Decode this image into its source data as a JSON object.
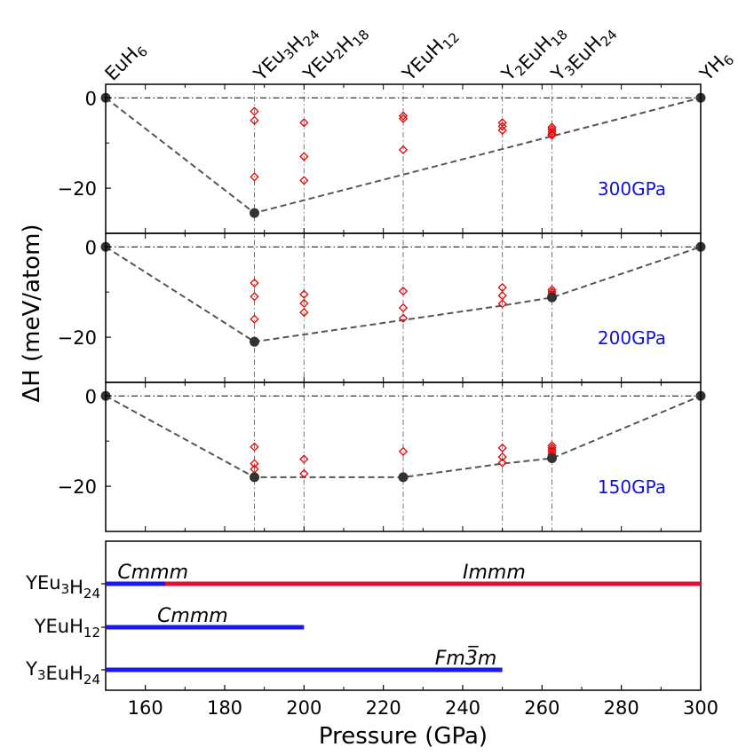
{
  "chart_data": [
    {
      "type": "scatter",
      "ylabel": "ΔH (meV/atom)",
      "xlim": [
        150,
        300
      ],
      "compositions": [
        {
          "formula": "EuH6",
          "x": 150
        },
        {
          "formula": "YEu3H24",
          "x": 187.5
        },
        {
          "formula": "YEu2H18",
          "x": 200
        },
        {
          "formula": "YEuH12",
          "x": 225
        },
        {
          "formula": "Y2EuH18",
          "x": 250
        },
        {
          "formula": "Y3EuH24",
          "x": 262.5
        },
        {
          "formula": "YH6",
          "x": 300
        }
      ],
      "panels": [
        {
          "pressure": "300GPa",
          "ylim": [
            -30,
            3
          ],
          "yticks": [
            "0",
            "−20"
          ],
          "ytick_values": [
            0,
            -20
          ],
          "hull": [
            [
              150,
              0
            ],
            [
              187.5,
              -25.5
            ],
            [
              300,
              0
            ]
          ],
          "stable_points": [
            [
              150,
              0
            ],
            [
              187.5,
              -25.5
            ],
            [
              300,
              0
            ]
          ],
          "metastable_points": [
            [
              187.5,
              -3
            ],
            [
              187.5,
              -5
            ],
            [
              187.5,
              -17.5
            ],
            [
              200,
              -5.5
            ],
            [
              200,
              -13
            ],
            [
              200,
              -18.3
            ],
            [
              225,
              -4
            ],
            [
              225,
              -4.6
            ],
            [
              225,
              -11.5
            ],
            [
              250,
              -5.5
            ],
            [
              250,
              -6.3
            ],
            [
              250,
              -7.2
            ],
            [
              262.5,
              -6.5
            ],
            [
              262.5,
              -7
            ],
            [
              262.5,
              -7.5
            ],
            [
              262.5,
              -8
            ],
            [
              262.5,
              -8.3
            ]
          ]
        },
        {
          "pressure": "200GPa",
          "ylim": [
            -30,
            3
          ],
          "yticks": [
            "0",
            "−20"
          ],
          "ytick_values": [
            0,
            -20
          ],
          "hull": [
            [
              150,
              0
            ],
            [
              187.5,
              -21
            ],
            [
              250,
              -13
            ],
            [
              262.5,
              -11.2
            ],
            [
              300,
              0
            ]
          ],
          "stable_points": [
            [
              150,
              0
            ],
            [
              187.5,
              -21
            ],
            [
              262.5,
              -11.2
            ],
            [
              300,
              0
            ]
          ],
          "metastable_points": [
            [
              187.5,
              -8
            ],
            [
              187.5,
              -11
            ],
            [
              187.5,
              -16
            ],
            [
              200,
              -10.5
            ],
            [
              200,
              -12.5
            ],
            [
              200,
              -14.5
            ],
            [
              225,
              -9.8
            ],
            [
              225,
              -13.5
            ],
            [
              225,
              -15.8
            ],
            [
              250,
              -9
            ],
            [
              250,
              -10.8
            ],
            [
              250,
              -12.6
            ],
            [
              262.5,
              -9.5
            ],
            [
              262.5,
              -10
            ],
            [
              262.5,
              -10.5
            ]
          ]
        },
        {
          "pressure": "150GPa",
          "ylim": [
            -30,
            3
          ],
          "yticks": [
            "0",
            "−20"
          ],
          "ytick_values": [
            0,
            -20
          ],
          "hull": [
            [
              150,
              0
            ],
            [
              187.5,
              -18
            ],
            [
              225,
              -18
            ],
            [
              250,
              -15
            ],
            [
              262.5,
              -13.8
            ],
            [
              300,
              0
            ]
          ],
          "stable_points": [
            [
              150,
              0
            ],
            [
              187.5,
              -18
            ],
            [
              225,
              -18
            ],
            [
              262.5,
              -13.8
            ],
            [
              300,
              0
            ]
          ],
          "metastable_points": [
            [
              187.5,
              -11.3
            ],
            [
              187.5,
              -15
            ],
            [
              187.5,
              -16.2
            ],
            [
              200,
              -14
            ],
            [
              200,
              -17.2
            ],
            [
              225,
              -12.3
            ],
            [
              250,
              -11.5
            ],
            [
              250,
              -13.5
            ],
            [
              250,
              -14.8
            ],
            [
              262.5,
              -11
            ],
            [
              262.5,
              -11.5
            ],
            [
              262.5,
              -12
            ],
            [
              262.5,
              -12.5
            ],
            [
              262.5,
              -13
            ]
          ]
        }
      ]
    },
    {
      "type": "bar",
      "orientation": "horizontal",
      "xlabel": "Pressure (GPa)",
      "xlim": [
        150,
        300
      ],
      "xticks": [
        "160",
        "180",
        "200",
        "220",
        "240",
        "260",
        "280",
        "300"
      ],
      "xtick_values": [
        160,
        180,
        200,
        220,
        240,
        260,
        280,
        300
      ],
      "rows": [
        {
          "formula": "YEu3H24",
          "segments": [
            {
              "phase": "Cmmm",
              "from": 150,
              "to": 165,
              "color": "#1a1aee"
            },
            {
              "phase": "Immm",
              "from": 165,
              "to": 300,
              "color": "#dd1133"
            }
          ]
        },
        {
          "formula": "YEuH12",
          "segments": [
            {
              "phase": "Cmmm",
              "from": 150,
              "to": 200,
              "color": "#1a1aee"
            }
          ]
        },
        {
          "formula": "Y3EuH24",
          "segments": [
            {
              "phase": "Fm-3m",
              "from": 150,
              "to": 250,
              "color": "#1a1aee"
            }
          ]
        }
      ]
    }
  ],
  "colors": {
    "stable": "#333333",
    "metastable": "#ee0000",
    "hull": "#555555",
    "pressure_text": "#1010e0"
  }
}
